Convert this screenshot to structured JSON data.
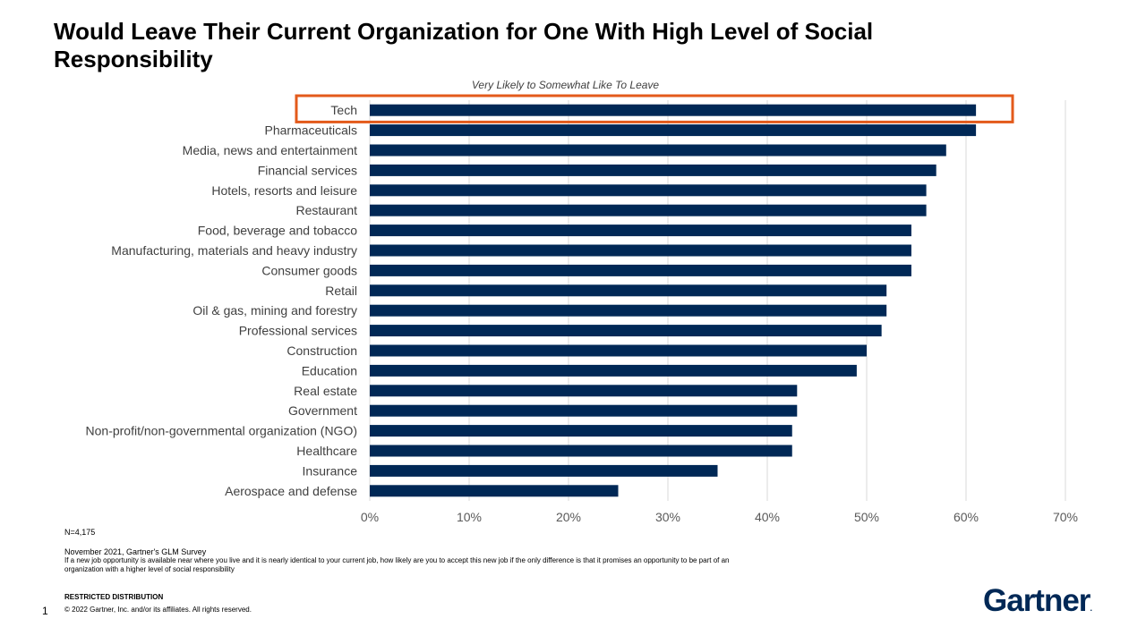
{
  "title": "Would Leave Their Current Organization for One With High Level of Social Responsibility",
  "chart_data": {
    "type": "bar",
    "orientation": "horizontal",
    "subtitle": "Very Likely to Somewhat Like To Leave",
    "categories": [
      "Tech",
      "Pharmaceuticals",
      "Media, news and entertainment",
      "Financial services",
      "Hotels, resorts and leisure",
      "Restaurant",
      "Food, beverage and tobacco",
      "Manufacturing, materials and heavy industry",
      "Consumer goods",
      "Retail",
      "Oil & gas, mining and forestry",
      "Professional services",
      "Construction",
      "Education",
      "Real estate",
      "Government",
      "Non-profit/non-governmental organization (NGO)",
      "Healthcare",
      "Insurance",
      "Aerospace and defense"
    ],
    "values": [
      61,
      61,
      58,
      57,
      56,
      56,
      54.5,
      54.5,
      54.5,
      52,
      52,
      51.5,
      50,
      49,
      43,
      43,
      42.5,
      42.5,
      35,
      25
    ],
    "xlim": [
      0,
      70
    ],
    "ticks": [
      "0%",
      "10%",
      "20%",
      "30%",
      "40%",
      "50%",
      "60%",
      "70%"
    ],
    "grid": true,
    "highlight_category": "Tech",
    "bar_color": "#002856",
    "highlight_color": "#E35A1B"
  },
  "footer": {
    "n": "N=4,175",
    "source": "November 2021, Gartner's GLM Survey",
    "question": "If a new job opportunity is available near where you live and it is nearly identical to your current job, how likely are you to accept this new job if the only difference is that it promises an opportunity to be part of an organization with a higher level of social responsibility",
    "restricted": "RESTRICTED DISTRIBUTION",
    "copyright": "© 2022 Gartner, Inc. and/or its affiliates. All rights reserved.",
    "page_number": "1"
  },
  "logo": {
    "text": "Gartner",
    "dot": "."
  }
}
